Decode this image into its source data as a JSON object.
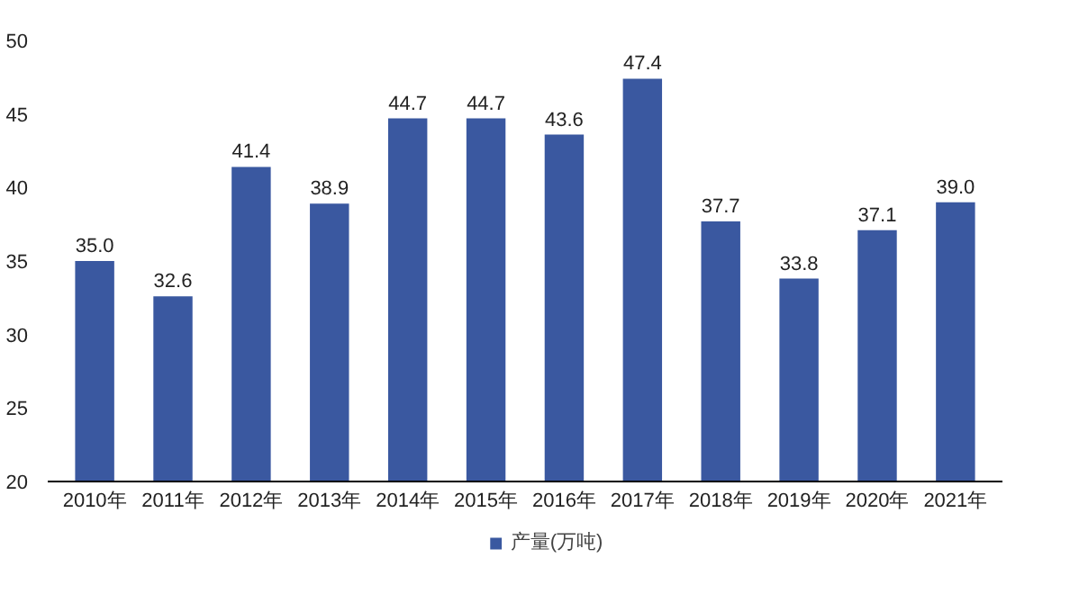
{
  "chart_data": {
    "type": "bar",
    "categories": [
      "2010年",
      "2011年",
      "2012年",
      "2013年",
      "2014年",
      "2015年",
      "2016年",
      "2017年",
      "2018年",
      "2019年",
      "2020年",
      "2021年"
    ],
    "series": [
      {
        "name": "产量(万吨)",
        "color": "#3a58a0",
        "values": [
          35.0,
          32.6,
          41.4,
          38.9,
          44.7,
          44.7,
          43.6,
          47.4,
          37.7,
          33.8,
          37.1,
          39.0
        ]
      }
    ],
    "value_labels": [
      "35.0",
      "32.6",
      "41.4",
      "38.9",
      "44.7",
      "44.7",
      "43.6",
      "47.4",
      "37.7",
      "33.8",
      "37.1",
      "39.0"
    ],
    "ylim": [
      20,
      50
    ],
    "yticks": [
      20,
      25,
      30,
      35,
      40,
      45,
      50
    ],
    "grid": false,
    "legend": "bottom"
  }
}
